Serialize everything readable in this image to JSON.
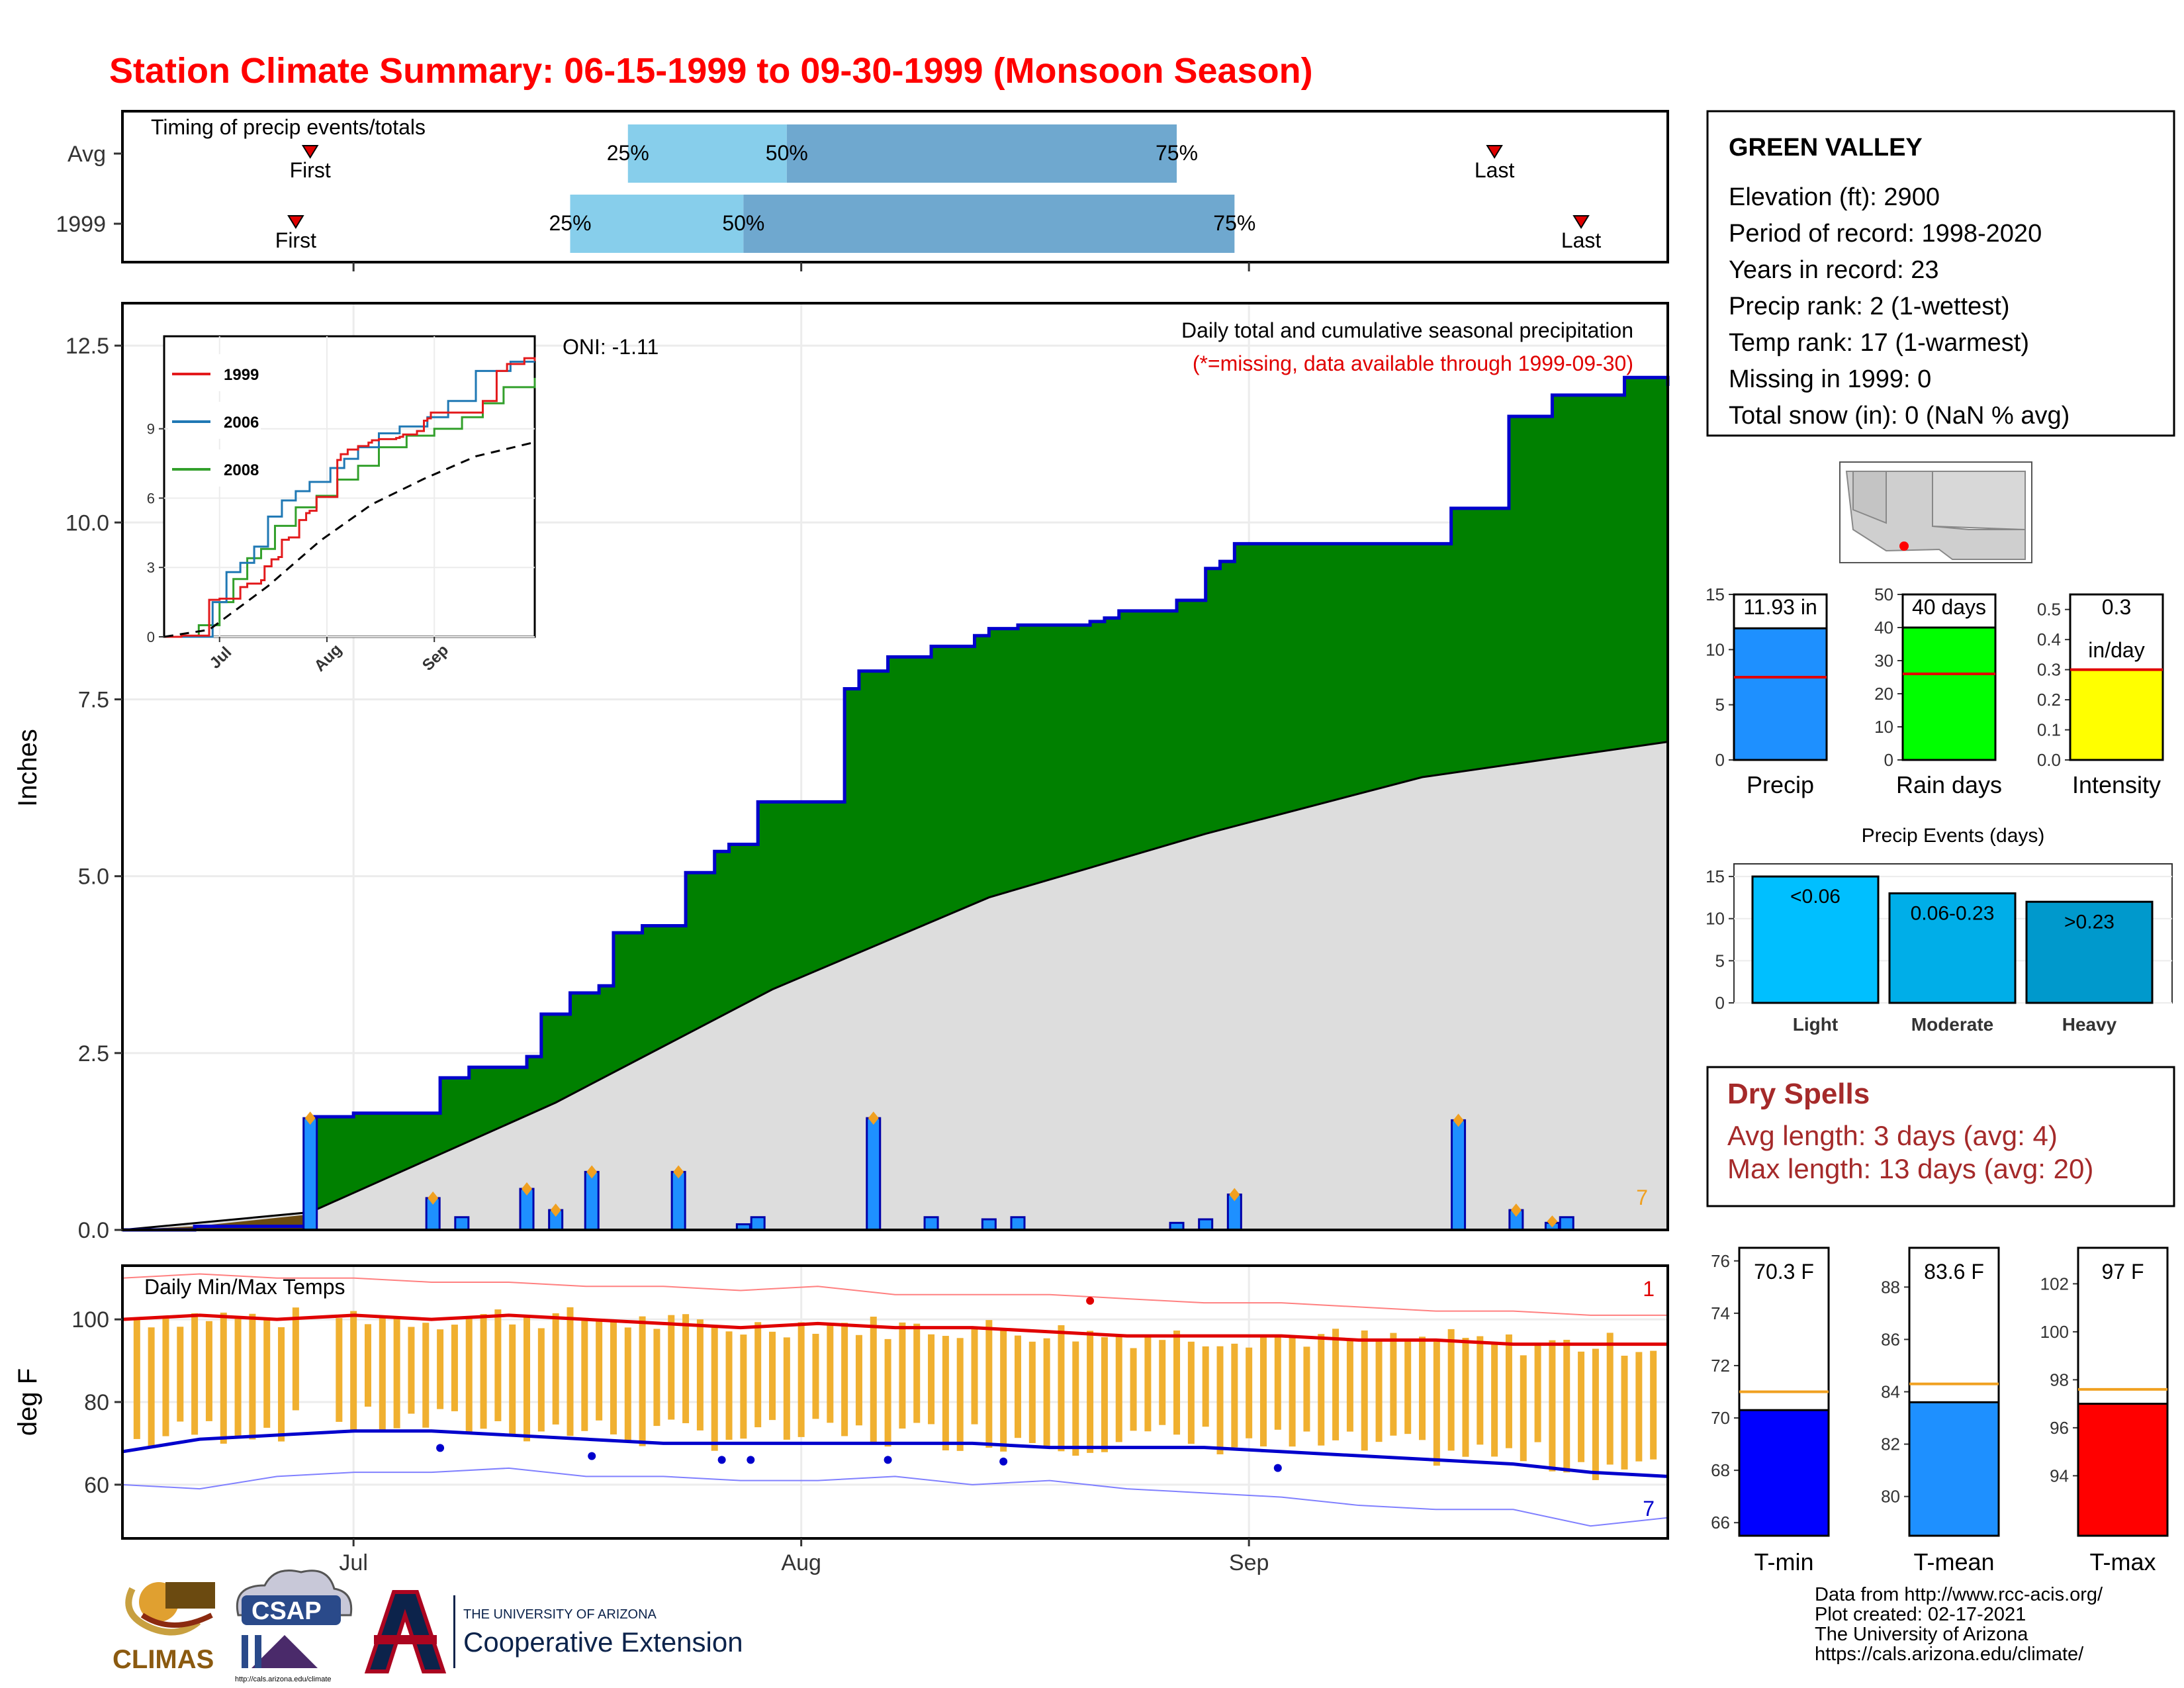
{
  "title": "Station Climate Summary: 06-15-1999 to 09-30-1999 (Monsoon Season)",
  "colors": {
    "title": "#ff0000",
    "green": "#008000",
    "grey_fill": "#dddddd",
    "bar_blue": "#1e90ff",
    "line_blue": "#0000cc",
    "orange": "#f0a020",
    "red": "#e00000",
    "dry_red": "#a52a2a",
    "brown": "#6b4a10",
    "timing_light": "#87ceeb",
    "timing_dark": "#6fa8cf"
  },
  "month_labels": [
    "Jul",
    "Aug",
    "Sep"
  ],
  "timing": {
    "title": "Timing of precip events/totals",
    "rows": [
      {
        "label": "Avg",
        "first": "First",
        "last": "Last",
        "p25": "25%",
        "p50": "50%",
        "p75": "75%",
        "first_day": 13,
        "p25_day": 35,
        "p50_day": 46,
        "p75_day": 73,
        "last_day": 95
      },
      {
        "label": "1999",
        "first": "First",
        "last": "Last",
        "p25": "25%",
        "p50": "50%",
        "p75": "75%",
        "first_day": 12,
        "p25_day": 31,
        "p50_day": 43,
        "p75_day": 77,
        "last_day": 101
      }
    ]
  },
  "precip": {
    "ylabel": "Inches",
    "caption": "Daily total and cumulative seasonal precipitation",
    "missing_note": "(*=missing, data available through 1999-09-30)",
    "oni": "ONI: -1.11",
    "corner_count": "7",
    "y_ticks": [
      "0.0",
      "2.5",
      "5.0",
      "7.5",
      "10.0",
      "12.5"
    ],
    "y_values": [
      0,
      2.5,
      5,
      7.5,
      10,
      12.5
    ],
    "ylim": [
      0,
      13.1
    ],
    "xlim_days": [
      0,
      107
    ],
    "avg_end": 6.9
  },
  "inset": {
    "legend": [
      "1999",
      "2006",
      "2008"
    ],
    "y_ticks": [
      "0",
      "3",
      "6",
      "9"
    ],
    "x_ticks": [
      "Jul",
      "Aug",
      "Sep"
    ]
  },
  "chart_data": [
    {
      "type": "area",
      "title": "Daily total and cumulative seasonal precipitation",
      "ylabel": "Inches",
      "ylim": [
        0,
        13.1
      ],
      "series": [
        {
          "name": "1999 cumulative",
          "x": [
            0,
            5,
            13,
            16,
            22,
            24,
            28,
            29,
            31,
            33,
            34,
            36,
            39,
            41,
            42,
            44,
            48,
            50,
            51,
            53,
            56,
            59,
            60,
            62,
            67,
            68,
            69,
            73,
            75,
            76,
            77,
            77,
            79,
            92,
            96,
            99,
            104,
            107
          ],
          "values": [
            0,
            0.05,
            1.6,
            1.65,
            2.15,
            2.3,
            2.45,
            3.05,
            3.35,
            3.45,
            4.2,
            4.3,
            5.05,
            5.35,
            5.45,
            6.05,
            6.05,
            7.65,
            7.9,
            8.1,
            8.25,
            8.4,
            8.5,
            8.55,
            8.6,
            8.65,
            8.75,
            8.9,
            9.35,
            9.45,
            9.55,
            9.7,
            9.7,
            10.2,
            11.5,
            11.8,
            12.05,
            11.93
          ]
        },
        {
          "name": "Avg cumulative",
          "x": [
            0,
            13,
            30,
            45,
            60,
            75,
            90,
            107
          ],
          "values": [
            0,
            0.25,
            1.8,
            3.4,
            4.7,
            5.6,
            6.4,
            6.9
          ]
        }
      ],
      "daily_bars": [
        {
          "day": 13,
          "value": 1.58
        },
        {
          "day": 21.5,
          "value": 0.45
        },
        {
          "day": 23.5,
          "value": 0.18
        },
        {
          "day": 28,
          "value": 0.58
        },
        {
          "day": 30,
          "value": 0.28
        },
        {
          "day": 32.5,
          "value": 0.82
        },
        {
          "day": 38.5,
          "value": 0.82
        },
        {
          "day": 43,
          "value": 0.08
        },
        {
          "day": 44,
          "value": 0.18
        },
        {
          "day": 52,
          "value": 1.58
        },
        {
          "day": 56,
          "value": 0.18
        },
        {
          "day": 60,
          "value": 0.15
        },
        {
          "day": 62,
          "value": 0.18
        },
        {
          "day": 73,
          "value": 0.1
        },
        {
          "day": 75,
          "value": 0.15
        },
        {
          "day": 77,
          "value": 0.5
        },
        {
          "day": 92.5,
          "value": 1.55
        },
        {
          "day": 96.5,
          "value": 0.28
        },
        {
          "day": 99,
          "value": 0.1
        },
        {
          "day": 100,
          "value": 0.18
        }
      ]
    },
    {
      "type": "line",
      "title": "Daily Min/Max Temps",
      "ylabel": "deg F",
      "y_ticks": [
        "60",
        "80",
        "100"
      ],
      "y_values": [
        60,
        80,
        100
      ],
      "ylim": [
        47,
        113
      ],
      "max_avg": [
        100,
        101,
        100,
        101,
        100,
        101,
        100,
        99,
        98,
        99,
        98,
        98,
        97,
        96,
        96,
        96,
        95,
        95,
        94,
        94,
        94
      ],
      "min_avg": [
        68,
        71,
        72,
        73,
        73,
        72,
        71,
        70,
        70,
        70,
        70,
        70,
        69,
        69,
        69,
        68,
        67,
        66,
        65,
        63,
        62
      ],
      "max_record": [
        110,
        111,
        110,
        110,
        109,
        109,
        108,
        108,
        107,
        108,
        106,
        106,
        106,
        105,
        104,
        104,
        103,
        102,
        102,
        101,
        101
      ],
      "min_record": [
        60,
        59,
        62,
        63,
        63,
        64,
        62,
        62,
        61,
        61,
        62,
        60,
        61,
        59,
        58,
        57,
        55,
        54,
        54,
        50,
        52
      ],
      "corner_top": "1",
      "corner_bottom": "7"
    }
  ],
  "station": {
    "name": "GREEN VALLEY",
    "lines": [
      "Elevation (ft): 2900",
      "Period of record: 1998-2020",
      "Years in record: 23",
      "Precip rank: 2 (1-wettest)",
      "Temp rank: 17 (1-warmest)",
      "Missing in 1999: 0",
      "Total snow (in): 0 (NaN % avg)"
    ]
  },
  "mini_bars": [
    {
      "label": "Precip",
      "value_label": "11.93 in",
      "value": 11.93,
      "avg": 7.5,
      "max": 15,
      "ticks": [
        "0",
        "5",
        "10",
        "15"
      ],
      "tick_values": [
        0,
        5,
        10,
        15
      ],
      "color": "#1e90ff"
    },
    {
      "label": "Rain days",
      "value_label": "40 days",
      "value": 40,
      "avg": 26,
      "max": 50,
      "ticks": [
        "0",
        "10",
        "20",
        "30",
        "40",
        "50"
      ],
      "tick_values": [
        0,
        10,
        20,
        30,
        40,
        50
      ],
      "color": "#00ff00"
    },
    {
      "label": "Intensity",
      "value_label": "0.3",
      "value_label2": "in/day",
      "value": 0.3,
      "avg": 0.3,
      "max": 0.55,
      "ticks": [
        "0.0",
        "0.1",
        "0.2",
        "0.3",
        "0.4",
        "0.5"
      ],
      "tick_values": [
        0,
        0.1,
        0.2,
        0.3,
        0.4,
        0.5
      ],
      "color": "#ffff00"
    }
  ],
  "events": {
    "title": "Precip Events (days)",
    "ticks": [
      "0",
      "5",
      "10",
      "15"
    ],
    "tick_values": [
      0,
      5,
      10,
      15
    ],
    "max": 16.5,
    "bars": [
      {
        "cat": "Light",
        "label": "<0.06",
        "value": 15,
        "color": "#00bfff"
      },
      {
        "cat": "Moderate",
        "label": "0.06-0.23",
        "value": 13,
        "color": "#00aee8"
      },
      {
        "cat": "Heavy",
        "label": ">0.23",
        "value": 12,
        "color": "#0099cc"
      }
    ]
  },
  "dry_spells": {
    "title": "Dry Spells",
    "avg_line": "Avg length: 3 days (avg: 4)",
    "max_line": "Max length: 13 days (avg: 20)"
  },
  "temp_bars": [
    {
      "label": "T-min",
      "value_label": "70.3 F",
      "value": 70.3,
      "avg": 71.0,
      "min": 65.5,
      "max": 76.5,
      "ticks": [
        "66",
        "68",
        "70",
        "72",
        "74",
        "76"
      ],
      "tick_values": [
        66,
        68,
        70,
        72,
        74,
        76
      ],
      "color": "#0000ff"
    },
    {
      "label": "T-mean",
      "value_label": "83.6 F",
      "value": 83.6,
      "avg": 84.3,
      "min": 78.5,
      "max": 89.5,
      "ticks": [
        "80",
        "82",
        "84",
        "86",
        "88"
      ],
      "tick_values": [
        80,
        82,
        84,
        86,
        88
      ],
      "color": "#1e90ff"
    },
    {
      "label": "T-max",
      "value_label": "97 F",
      "value": 97.0,
      "avg": 97.6,
      "min": 91.5,
      "max": 103.5,
      "ticks": [
        "94",
        "96",
        "98",
        "100",
        "102"
      ],
      "tick_values": [
        94,
        96,
        98,
        100,
        102
      ],
      "color": "#ff0000"
    }
  ],
  "footer": {
    "lines": [
      "Data from http://www.rcc-acis.org/",
      "Plot created: 02-17-2021",
      "The University of Arizona",
      "https://cals.arizona.edu/climate/"
    ],
    "climas": "CLIMAS",
    "csap": "CSAP",
    "csap_url": "http://cals.arizona.edu/climate",
    "ua_small": "THE UNIVERSITY OF ARIZONA",
    "ua_big": "Cooperative Extension"
  }
}
